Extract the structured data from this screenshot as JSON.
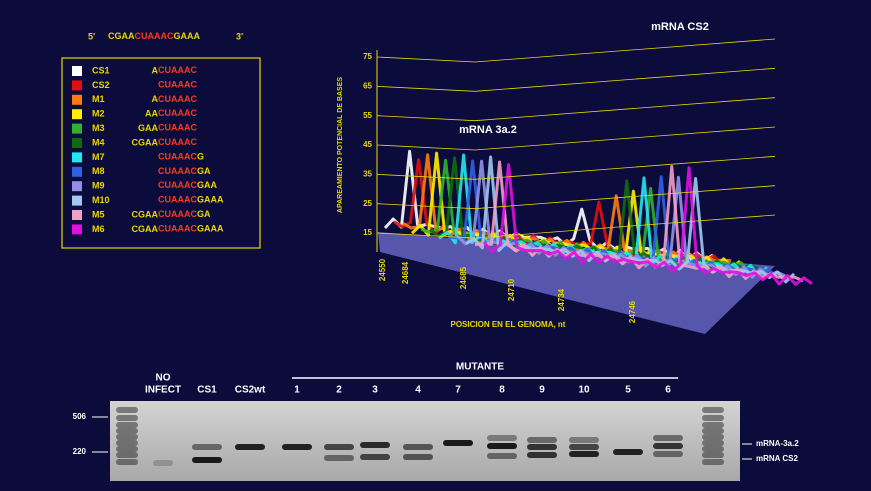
{
  "sequence": {
    "prime5": "5'",
    "seq_a": "CGAA",
    "seq_b": "CUAAAC",
    "seq_c": "GAAA",
    "prime3": "3'"
  },
  "legend": [
    {
      "name": "CS1",
      "color": "#ffffff",
      "pre": "A",
      "core": "CUAAAC"
    },
    {
      "name": "CS2",
      "color": "#e01010",
      "core": "CUAAAC"
    },
    {
      "name": "M1",
      "color": "#ff7a10",
      "pre": "A",
      "core": "CUAAAC"
    },
    {
      "name": "M2",
      "color": "#ffee00",
      "pre": "AA",
      "core": "CUAAAC"
    },
    {
      "name": "M3",
      "color": "#30b030",
      "pre": "GAA",
      "core": "CUAAAC"
    },
    {
      "name": "M4",
      "color": "#106a10",
      "pre": "CGAA",
      "core": "CUAAAC"
    },
    {
      "name": "M7",
      "color": "#20e8f0",
      "core": "CUAAAC",
      "post": "G"
    },
    {
      "name": "M8",
      "color": "#3060e0",
      "core": "CUAAAC",
      "post": "GA"
    },
    {
      "name": "M9",
      "color": "#9090e8",
      "core": "CUAAAC",
      "post": "GAA"
    },
    {
      "name": "M10",
      "color": "#a0c8f0",
      "core": "CUAAAC",
      "post": "GAAA"
    },
    {
      "name": "M5",
      "color": "#f0a0c8",
      "pre": "CGAA",
      "core": "CUAAAC",
      "post": "GA"
    },
    {
      "name": "M6",
      "color": "#e010e0",
      "pre": "CGAA",
      "core": "CUAAAC",
      "post": "GAAA"
    }
  ],
  "chart": {
    "title": "mRNA CS2",
    "annotation": "mRNA 3a.2",
    "y_label": "APAREAMIENTO POTENCIAL DE BASES",
    "x_label": "POSICION EN EL GENOMA, nt",
    "yticks": [
      15,
      25,
      35,
      45,
      55,
      65,
      75
    ],
    "xticks": [
      24550,
      24684,
      24685,
      24710,
      24734,
      24746
    ]
  },
  "gel": {
    "group_label": "MUTANTE",
    "no_infect": [
      "NO",
      "INFECT"
    ],
    "lanes": [
      "CS1",
      "CS2wt",
      "1",
      "2",
      "3",
      "4",
      "7",
      "8",
      "9",
      "10",
      "5",
      "6"
    ],
    "markers": [
      "506",
      "220"
    ],
    "bands": [
      "mRNA-3a.2",
      "mRNA CS2"
    ]
  }
}
